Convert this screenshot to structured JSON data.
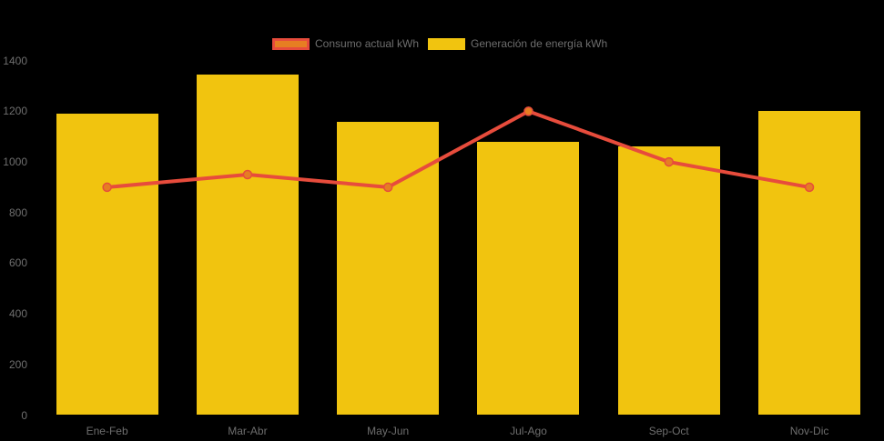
{
  "chart": {
    "background_color": "#000000",
    "axis_text_color": "#6E6E6E",
    "legend": {
      "position": "top",
      "items": [
        {
          "label": "Consumo actual kWh",
          "swatch_fill": "#E67E22",
          "swatch_border": "#E74C3C"
        },
        {
          "label": "Generación de energía kWh",
          "swatch_fill": "#F1C40F",
          "swatch_border": "#F1C40F"
        }
      ]
    }
  },
  "chart_data": {
    "type": "bar",
    "subtype": "bar+line combo",
    "title": "",
    "xlabel": "",
    "ylabel": "",
    "categories": [
      "Ene-Feb",
      "Mar-Abr",
      "May-Jun",
      "Jul-Ago",
      "Sep-Oct",
      "Nov-Dic"
    ],
    "series": [
      {
        "name": "Consumo actual kWh",
        "type": "line",
        "color": "#E74C3C",
        "point_color": "#E67E22",
        "values": [
          900,
          950,
          900,
          1200,
          1000,
          900
        ]
      },
      {
        "name": "Generación de energía kWh",
        "type": "bar",
        "color": "#F1C40F",
        "values": [
          1190,
          1345,
          1160,
          1080,
          1060,
          1200
        ]
      }
    ],
    "ylim": [
      0,
      1400
    ],
    "yticks": [
      0,
      200,
      400,
      600,
      800,
      1000,
      1200,
      1400
    ],
    "grid": false,
    "legend_position": "top"
  }
}
